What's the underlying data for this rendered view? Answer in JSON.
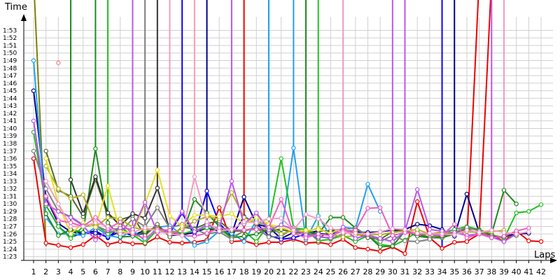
{
  "chart_data": {
    "type": "line",
    "ylabel": "Time",
    "xlabel": "Laps",
    "grid": true,
    "x": [
      1,
      2,
      3,
      4,
      5,
      6,
      7,
      8,
      9,
      10,
      11,
      12,
      13,
      14,
      15,
      16,
      17,
      18,
      19,
      20,
      21,
      22,
      23,
      24,
      25,
      26,
      27,
      28,
      29,
      30,
      31,
      32,
      33,
      34,
      35,
      36,
      37,
      38,
      39,
      40,
      41,
      42
    ],
    "xlim": [
      1,
      42
    ],
    "ylim": [
      "1:22.5",
      "1:54.8"
    ],
    "y_tick_labels": [
      "1:23",
      "1:24",
      "1:25",
      "1:26",
      "1:27",
      "1:28",
      "1:29",
      "1:30",
      "1:31",
      "1:32",
      "1:33",
      "1:34",
      "1:35",
      "1:36",
      "1:37",
      "1:38",
      "1:39",
      "1:40",
      "1:41",
      "1:42",
      "1:43",
      "1:44",
      "1:45",
      "1:46",
      "1:47",
      "1:48",
      "1:49",
      "1:50",
      "1:51",
      "1:52",
      "1:53"
    ],
    "series": [
      {
        "color": "#ee0000",
        "values": [
          96.0,
          84.8,
          84.5,
          84.2,
          84.6,
          85.8,
          84.6,
          85.0,
          84.7,
          84.7,
          85.6,
          84.9,
          84.8,
          84.9,
          85.2,
          89.5,
          85.0,
          85.1,
          84.6,
          84.9,
          84.9,
          85.3,
          84.8,
          84.9,
          84.6,
          85.3,
          84.2,
          84.0,
          83.7,
          84.3,
          83.4,
          90.3,
          85.5,
          84.1,
          84.9,
          85.0,
          86.0,
          85.9,
          85.0,
          86.4,
          85.1,
          85.0
        ]
      },
      {
        "color": "#f58080",
        "values": [
          null,
          null,
          108.7,
          null,
          null,
          null,
          null,
          null,
          null,
          null,
          null,
          null,
          null,
          null,
          null,
          null,
          null,
          null,
          null,
          null,
          null,
          null,
          null,
          null,
          null,
          null,
          null,
          null,
          null,
          null,
          null,
          null,
          null,
          null,
          null,
          null,
          null,
          null,
          null,
          null,
          null,
          null
        ]
      },
      {
        "color": "#00008b",
        "values": [
          105.0,
          90.8,
          87.4,
          86.3,
          86.1,
          86.4,
          85.5,
          86.9,
          85.8,
          86.5,
          86.8,
          85.8,
          85.9,
          86.2,
          86.8,
          86.4,
          86.0,
          90.9,
          87.3,
          86.9,
          85.4,
          86.2,
          86.1,
          86.4,
          86.4,
          86.6,
          86.3,
          86.2,
          86.3,
          86.5,
          86.6,
          87.3,
          87.1,
          86.6,
          85.7,
          91.3,
          86.2,
          85.5,
          85.7,
          86.0,
          86.1,
          null
        ]
      },
      {
        "color": "#0a00ff",
        "values": [
          null,
          89.8,
          87.0,
          85.6,
          86.1,
          86.1,
          85.6,
          86.3,
          85.8,
          86.1,
          87.0,
          86.1,
          88.8,
          85.8,
          91.7,
          87.4,
          85.7,
          88.3,
          87.4,
          85.8,
          85.3,
          85.5,
          86.0,
          86.1,
          85.9,
          86.7,
          86.8,
          null,
          null,
          null,
          null,
          null,
          null,
          null,
          null,
          null,
          null,
          null,
          null,
          null,
          null,
          null
        ]
      },
      {
        "color": "#22a0ee",
        "values": [
          109.0,
          88.2,
          86.0,
          86.0,
          85.8,
          86.9,
          85.8,
          85.5,
          86.5,
          85.1,
          86.9,
          87.1,
          85.9,
          84.5,
          85.0,
          86.4,
          86.1,
          85.0,
          87.8,
          86.9,
          86.0,
          97.4,
          85.3,
          88.4,
          85.6,
          86.9,
          86.7,
          92.6,
          89.0,
          null,
          null,
          null,
          null,
          null,
          null,
          null,
          null,
          null,
          null,
          null,
          null,
          null
        ]
      },
      {
        "color": "#20c020",
        "values": [
          99.5,
          89.8,
          87.0,
          85.4,
          87.0,
          87.2,
          86.0,
          86.8,
          85.9,
          84.8,
          86.6,
          86.5,
          86.0,
          86.5,
          86.8,
          86.7,
          85.5,
          86.4,
          85.0,
          87.3,
          96.0,
          86.8,
          86.6,
          85.1,
          85.3,
          85.8,
          85.0,
          85.8,
          84.6,
          84.4,
          85.2,
          86.3,
          85.5,
          86.2,
          86.6,
          87.0,
          86.6,
          85.9,
          85.4,
          88.8,
          89.0,
          89.9
        ]
      },
      {
        "color": "#1e8a1e",
        "values": [
          null,
          88.7,
          85.8,
          86.6,
          86.2,
          97.3,
          87.5,
          85.6,
          85.7,
          86.3,
          86.9,
          86.0,
          86.0,
          90.6,
          88.8,
          87.0,
          85.5,
          85.7,
          86.0,
          86.6,
          86.6,
          86.3,
          86.4,
          86.0,
          88.2,
          88.2,
          86.8,
          85.8,
          84.3,
          84.4,
          86.4,
          85.7,
          85.5,
          85.5,
          86.0,
          86.7,
          86.0,
          86.0,
          91.8,
          90.0,
          null,
          null
        ]
      },
      {
        "color": "#556b2f",
        "values": [
          null,
          97.0,
          91.8,
          91.0,
          88.3,
          93.3,
          88.4,
          87.9,
          88.4,
          85.8,
          87.3,
          85.6,
          86.9,
          86.7,
          87.4,
          87.7,
          86.4,
          86.4,
          86.8,
          86.2,
          86.6,
          86.2,
          86.1,
          85.4,
          86.5,
          86.6,
          86.1,
          85.5,
          85.3,
          86.3,
          86.5,
          86.0,
          85.5,
          85.7,
          86.2,
          86.8,
          86.5,
          85.8,
          85.6,
          85.8,
          null,
          null
        ]
      },
      {
        "color": "#333333",
        "values": [
          null,
          null,
          null,
          93.2,
          88.7,
          93.6,
          88.8,
          87.1,
          88.7,
          88.1,
          92.1,
          86.5,
          null,
          null,
          null,
          null,
          null,
          null,
          null,
          null,
          null,
          null,
          null,
          null,
          null,
          null,
          null,
          null,
          null,
          null,
          null,
          null,
          null,
          null,
          null,
          null,
          null,
          null,
          null,
          null,
          null,
          null
        ]
      },
      {
        "color": "#808080",
        "values": [
          97.0,
          92.0,
          89.0,
          88.3,
          87.2,
          87.1,
          86.4,
          86.2,
          88.0,
          87.0,
          89.5,
          86.8,
          87.3,
          86.6,
          86.0,
          86.3,
          85.3,
          86.5,
          86.8,
          85.6,
          85.7,
          86.8,
          86.2,
          85.7,
          85.4,
          86.0,
          86.6,
          86.0,
          85.0,
          85.8,
          85.1,
          85.0,
          85.3,
          86.1,
          86.2,
          86.9,
          86.4,
          85.5,
          null,
          null,
          null,
          null
        ]
      },
      {
        "color": "#b0b020",
        "values": [
          null,
          95.0,
          92.0,
          90.7,
          91.2,
          86.9,
          88.2,
          88.0,
          86.9,
          86.5,
          86.7,
          86.0,
          86.7,
          87.7,
          88.3,
          88.0,
          91.5,
          88.2,
          87.4,
          87.3,
          86.0,
          86.5,
          86.2,
          86.8,
          86.0,
          85.6,
          85.8,
          86.0,
          85.9,
          86.2,
          86.4,
          86.6,
          86.0,
          86.3,
          86.1,
          86.3,
          86.2,
          86.3,
          86.5,
          null,
          null,
          null
        ]
      },
      {
        "color": "#e8e020",
        "values": [
          null,
          96.0,
          90.0,
          86.0,
          87.5,
          86.9,
          92.4,
          86.3,
          86.2,
          90.0,
          94.5,
          88.4,
          87.0,
          88.5,
          88.5,
          88.3,
          88.7,
          87.3,
          88.2,
          87.3,
          86.9,
          86.3,
          86.5,
          86.6,
          86.1,
          86.8,
          86.3,
          null,
          null,
          null,
          null,
          null,
          null,
          null,
          null,
          null,
          null,
          null,
          null,
          null,
          null,
          null
        ]
      },
      {
        "color": "#bb55ee",
        "values": [
          101.0,
          90.0,
          89.0,
          88.2,
          87.1,
          85.2,
          86.5,
          86.8,
          86.6,
          90.2,
          86.2,
          86.4,
          89.0,
          86.3,
          87.2,
          86.7,
          93.0,
          87.3,
          88.8,
          86.5,
          87.2,
          86.6,
          85.9,
          85.6,
          85.5,
          86.9,
          85.4,
          85.9,
          85.4,
          85.0,
          86.4,
          91.9,
          86.6,
          86.4,
          86.2,
          85.8,
          86.0,
          85.6,
          85.0,
          86.0,
          null,
          null
        ]
      },
      {
        "color": "#ee5cc5",
        "values": [
          null,
          91.0,
          87.8,
          87.5,
          87.0,
          88.2,
          86.7,
          87.6,
          86.0,
          85.4,
          86.6,
          86.5,
          85.8,
          85.7,
          86.1,
          86.8,
          86.6,
          86.5,
          86.6,
          86.9,
          90.6,
          86.1,
          85.5,
          86.0,
          85.8,
          86.4,
          86.5,
          89.4,
          89.5,
          85.8,
          86.2,
          86.0,
          86.0,
          85.8,
          87.3,
          85.5,
          86.0,
          85.5,
          85.7,
          86.4,
          86.8,
          null
        ]
      },
      {
        "color": "#f49ac2",
        "values": [
          null,
          93.0,
          90.0,
          87.0,
          87.0,
          87.5,
          87.0,
          86.0,
          86.2,
          86.8,
          86.4,
          86.0,
          85.8,
          93.6,
          87.6,
          86.4,
          86.6,
          87.6,
          87.5,
          88.0,
          88.1,
          86.5,
          88.6,
          88.0,
          86.8,
          86.2,
          86.1,
          86.0,
          86.3,
          86.7,
          86.6,
          86.1,
          86.1,
          86.0,
          85.9,
          86.5,
          86.2,
          86.5,
          86.2,
          86.0,
          86.3,
          null
        ]
      }
    ],
    "spikes": [
      {
        "color": "#808000",
        "from": 2,
        "to": 1,
        "to_value": "off-scale"
      },
      {
        "color": "#1e8a1e",
        "from": 4,
        "to": 4,
        "to_value": "off-scale"
      },
      {
        "color": "#1e8a1e",
        "from": 6,
        "to": 6,
        "to_value": "off-scale"
      },
      {
        "color": "#20c020",
        "from": 7,
        "to": 7,
        "to_value": "off-scale"
      },
      {
        "color": "#bb55ee",
        "from": 9,
        "to": 9,
        "to_value": "off-scale"
      },
      {
        "color": "#808080",
        "from": 10,
        "to": 10,
        "to_value": "off-scale"
      },
      {
        "color": "#333333",
        "from": 11,
        "to": 11,
        "to_value": "off-scale"
      },
      {
        "color": "#f49ac2",
        "from": 12,
        "to": 12,
        "to_value": "off-scale"
      },
      {
        "color": "#0a00ff",
        "from": 13,
        "to": 13,
        "to_value": "off-scale"
      },
      {
        "color": "#f49ac2",
        "from": 14,
        "to": 14,
        "to_value": "off-scale"
      },
      {
        "color": "#00008b",
        "from": 15,
        "to": 15,
        "to_value": "off-scale"
      },
      {
        "color": "#bb55ee",
        "from": 17,
        "to": 17,
        "to_value": "off-scale"
      },
      {
        "color": "#ee0000",
        "from": 18,
        "to": 18,
        "to_value": "off-scale"
      },
      {
        "color": "#20c020",
        "from": 20,
        "to": 20,
        "to_value": "off-scale"
      },
      {
        "color": "#22a0ee",
        "from": 20,
        "to": 20,
        "to_value": "off-scale"
      },
      {
        "color": "#22a0ee",
        "from": 22,
        "to": 22,
        "to_value": "off-scale"
      },
      {
        "color": "#1e8a1e",
        "from": 23,
        "to": 23,
        "to_value": "off-scale"
      },
      {
        "color": "#20c020",
        "from": 24,
        "to": 24,
        "to_value": "off-scale"
      },
      {
        "color": "#f49ac2",
        "from": 26,
        "to": 26,
        "to_value": "off-scale"
      },
      {
        "color": "#bb55ee",
        "from": 30,
        "to": 30,
        "to_value": "off-scale"
      },
      {
        "color": "#bb55ee",
        "from": 31,
        "to": 31,
        "to_value": "off-scale"
      },
      {
        "color": "#0a00ff",
        "from": 34,
        "to": 34,
        "to_value": "off-scale"
      },
      {
        "color": "#00008b",
        "from": 35,
        "to": 35,
        "to_value": "off-scale"
      },
      {
        "color": "#ee0000",
        "from": 36,
        "to": 37,
        "to_value": "off-scale"
      },
      {
        "color": "#ee0000",
        "from": 37,
        "to": 38,
        "to_value": "off-scale"
      },
      {
        "color": "#bb55ee",
        "from": 38,
        "to": 38,
        "to_value": "off-scale"
      },
      {
        "color": "#f49ac2",
        "from": 39,
        "to": 39,
        "to_value": "off-scale"
      }
    ]
  }
}
